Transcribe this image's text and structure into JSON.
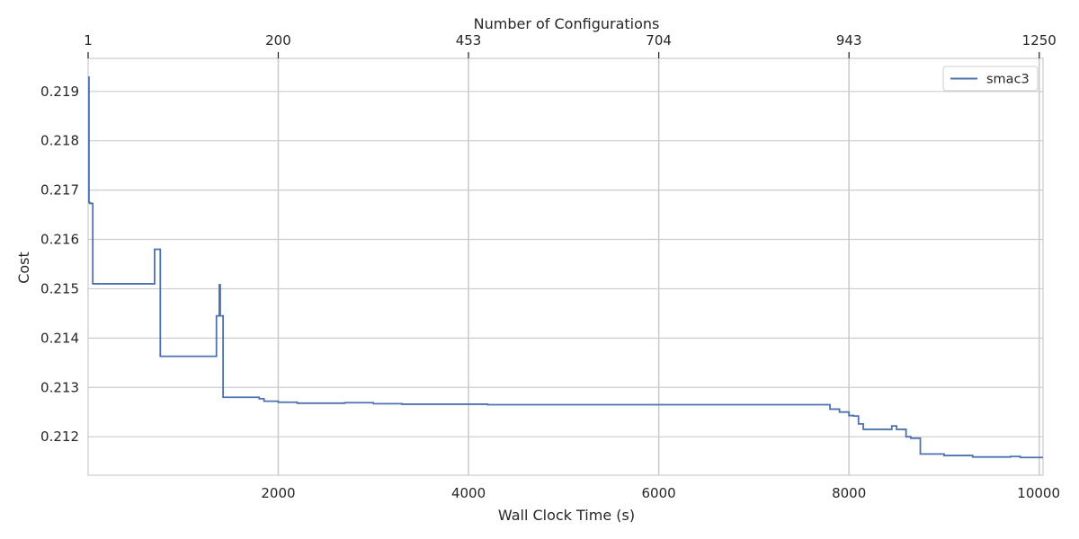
{
  "chart_data": {
    "type": "line",
    "title": "",
    "xlabel": "Wall Clock Time (s)",
    "ylabel": "Cost",
    "top_xlabel": "Number of Configurations",
    "xlim": [
      1,
      10040
    ],
    "ylim": [
      0.21122,
      0.21967
    ],
    "x_ticks": [
      2000,
      4000,
      6000,
      8000,
      10000
    ],
    "x_tick_labels": [
      "2000",
      "4000",
      "6000",
      "8000",
      "10000"
    ],
    "y_ticks": [
      0.212,
      0.213,
      0.214,
      0.215,
      0.216,
      0.217,
      0.218,
      0.219
    ],
    "y_tick_labels": [
      "0.212",
      "0.213",
      "0.214",
      "0.215",
      "0.216",
      "0.217",
      "0.218",
      "0.219"
    ],
    "top_ticks": [
      1,
      2000,
      4000,
      6000,
      8000,
      10000
    ],
    "top_tick_labels": [
      "1",
      "200",
      "453",
      "704",
      "943",
      "1250"
    ],
    "grid": true,
    "legend_position": "top-right",
    "colors": {
      "series": "#4c72b0",
      "grid": "#cccccc",
      "spine": "#cccccc",
      "text": "#262626"
    },
    "series": [
      {
        "name": "smac3",
        "x": [
          1,
          10,
          10,
          20,
          20,
          50,
          50,
          80,
          80,
          700,
          700,
          760,
          760,
          1350,
          1350,
          1380,
          1380,
          1390,
          1390,
          1420,
          1420,
          1800,
          1800,
          1850,
          1850,
          2000,
          2000,
          2200,
          2200,
          2700,
          2700,
          3000,
          3000,
          3300,
          3300,
          4200,
          4200,
          7800,
          7800,
          7900,
          7900,
          8000,
          8000,
          8050,
          8050,
          8100,
          8100,
          8150,
          8150,
          8450,
          8450,
          8500,
          8500,
          8550,
          8550,
          8600,
          8600,
          8650,
          8650,
          8750,
          8750,
          9000,
          9000,
          9300,
          9300,
          9700,
          9700,
          9800,
          9800,
          10040
        ],
        "y": [
          0.21929,
          0.21929,
          0.21675,
          0.21675,
          0.21673,
          0.21673,
          0.2151,
          0.2151,
          0.2151,
          0.2151,
          0.2158,
          0.2158,
          0.21363,
          0.21363,
          0.21445,
          0.21445,
          0.21508,
          0.21508,
          0.21445,
          0.21445,
          0.2128,
          0.2128,
          0.21277,
          0.21277,
          0.21272,
          0.21272,
          0.2127,
          0.2127,
          0.21268,
          0.21268,
          0.21269,
          0.21269,
          0.21267,
          0.21267,
          0.21266,
          0.21266,
          0.21265,
          0.21265,
          0.21256,
          0.21256,
          0.2125,
          0.2125,
          0.21243,
          0.21243,
          0.21242,
          0.21242,
          0.21226,
          0.21226,
          0.21215,
          0.21215,
          0.21222,
          0.21222,
          0.21215,
          0.21215,
          0.21215,
          0.21215,
          0.212,
          0.212,
          0.21197,
          0.21197,
          0.21165,
          0.21165,
          0.21162,
          0.21162,
          0.21159,
          0.21159,
          0.2116,
          0.2116,
          0.21158,
          0.21158
        ]
      }
    ]
  }
}
